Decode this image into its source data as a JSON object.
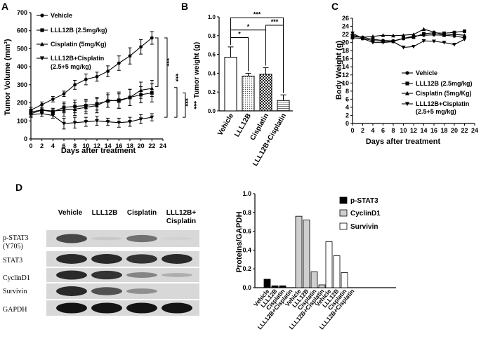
{
  "panels": {
    "a": "A",
    "b": "B",
    "c": "C",
    "d": "D"
  },
  "chart_data": [
    {
      "id": "A",
      "type": "line",
      "xlabel": "Days after treatment",
      "ylabel": "Tumor Volume (mm³)",
      "xlim": [
        0,
        24
      ],
      "ylim": [
        0,
        700
      ],
      "xticks": [
        "0",
        "2",
        "4",
        "6",
        "8",
        "10",
        "12",
        "14",
        "16",
        "18",
        "20",
        "22",
        "24"
      ],
      "yticks": [
        "0",
        "100",
        "200",
        "300",
        "400",
        "500",
        "600",
        "700"
      ],
      "legend": [
        "Vehicle",
        "LLL12B (2.5mg/kg)",
        "Cisplatin (5mg/Kg)",
        "LLL12B+Cisplatin",
        "(2.5+5 mg/kg)"
      ],
      "series": [
        {
          "name": "Vehicle",
          "marker": "circle",
          "x": [
            0,
            2,
            4,
            6,
            8,
            10,
            12,
            14,
            16,
            18,
            20,
            22
          ],
          "y": [
            160,
            190,
            220,
            250,
            300,
            330,
            345,
            375,
            420,
            460,
            510,
            560
          ],
          "err": [
            15,
            15,
            15,
            15,
            25,
            30,
            25,
            30,
            40,
            45,
            40,
            35
          ]
        },
        {
          "name": "LLL12B (2.5mg/kg)",
          "marker": "square",
          "x": [
            0,
            2,
            4,
            6,
            8,
            10,
            12,
            14,
            16,
            18,
            20,
            22
          ],
          "y": [
            150,
            160,
            150,
            175,
            180,
            185,
            195,
            210,
            215,
            230,
            245,
            255
          ],
          "err": [
            15,
            15,
            15,
            30,
            35,
            35,
            35,
            35,
            45,
            45,
            45,
            50
          ]
        },
        {
          "name": "Cisplatin (5mg/Kg)",
          "marker": "triangle",
          "x": [
            0,
            2,
            4,
            6,
            8,
            10,
            12,
            14,
            16,
            18,
            20,
            22
          ],
          "y": [
            140,
            160,
            155,
            160,
            165,
            175,
            185,
            215,
            210,
            230,
            270,
            280
          ],
          "err": [
            15,
            15,
            15,
            35,
            35,
            35,
            40,
            40,
            40,
            45,
            45,
            45
          ]
        },
        {
          "name": "LLL12B+Cisplatin (2.5+5 mg/kg)",
          "marker": "triangle-down",
          "x": [
            0,
            2,
            4,
            6,
            8,
            10,
            12,
            14,
            16,
            18,
            20,
            22
          ],
          "y": [
            135,
            140,
            130,
            85,
            90,
            95,
            100,
            95,
            90,
            95,
            110,
            120
          ],
          "err": [
            15,
            15,
            15,
            30,
            30,
            25,
            25,
            20,
            25,
            25,
            25,
            20
          ]
        }
      ],
      "significance": [
        "***",
        "***",
        "***",
        "***"
      ]
    },
    {
      "id": "B",
      "type": "bar",
      "ylabel": "Tumor weight (g)",
      "ylim": [
        0,
        1.0
      ],
      "yticks": [
        "0.0",
        "0.2",
        "0.4",
        "0.6",
        "0.8",
        "1.0"
      ],
      "categories": [
        "Vehicle",
        "LLL12B",
        "Cisplatin",
        "LLL12B+Cisplatin"
      ],
      "values": [
        0.57,
        0.37,
        0.39,
        0.11
      ],
      "err": [
        0.11,
        0.03,
        0.07,
        0.06
      ],
      "significance": [
        "*",
        "*",
        "***",
        "***"
      ]
    },
    {
      "id": "C",
      "type": "line",
      "xlabel": "Days after treatment",
      "ylabel": "Body Weight (g)",
      "xlim": [
        0,
        24
      ],
      "ylim": [
        0,
        26
      ],
      "xticks": [
        "0",
        "2",
        "4",
        "6",
        "8",
        "10",
        "12",
        "14",
        "16",
        "18",
        "20",
        "22",
        "24"
      ],
      "yticks": [
        "0",
        "2",
        "4",
        "6",
        "8",
        "10",
        "12",
        "14",
        "16",
        "18",
        "20",
        "22",
        "24",
        "26"
      ],
      "legend": [
        "Vehicle",
        "LLL12B (2.5mg/kg)",
        "Cisplatin (5mg/Kg)",
        "LLL12B+Cisplatin",
        "(2.5+5 mg/kg)"
      ],
      "series": [
        {
          "name": "Vehicle",
          "marker": "circle",
          "x": [
            0,
            2,
            4,
            6,
            8,
            10,
            12,
            14,
            16,
            18,
            20,
            22
          ],
          "y": [
            21.8,
            21.3,
            20.8,
            20.5,
            20.4,
            21.0,
            21.6,
            21.8,
            21.9,
            21.8,
            21.6,
            21.2
          ]
        },
        {
          "name": "LLL12B (2.5mg/kg)",
          "marker": "square",
          "x": [
            0,
            2,
            4,
            6,
            8,
            10,
            12,
            14,
            16,
            18,
            20,
            22
          ],
          "y": [
            21.2,
            21.0,
            20.5,
            20.3,
            20.3,
            21.0,
            21.3,
            22.2,
            22.4,
            22.3,
            22.5,
            22.8
          ]
        },
        {
          "name": "Cisplatin (5mg/Kg)",
          "marker": "triangle",
          "x": [
            0,
            2,
            4,
            6,
            8,
            10,
            12,
            14,
            16,
            18,
            20,
            22
          ],
          "y": [
            21.5,
            21.3,
            21.5,
            21.8,
            21.7,
            21.8,
            22.0,
            23.3,
            22.6,
            21.8,
            22.0,
            21.8
          ]
        },
        {
          "name": "LLL12B+Cisplatin (2.5+5 mg/kg)",
          "marker": "triangle-down",
          "x": [
            0,
            2,
            4,
            6,
            8,
            10,
            12,
            14,
            16,
            18,
            20,
            22
          ],
          "y": [
            22.3,
            21.0,
            20.0,
            20.0,
            20.2,
            18.8,
            19.0,
            20.4,
            20.3,
            20.0,
            19.5,
            20.8
          ]
        }
      ]
    },
    {
      "id": "D",
      "type": "bar",
      "ylabel": "Proteins/GAPDH",
      "ylim": [
        0,
        1.0
      ],
      "yticks": [
        "0.0",
        "0.2",
        "0.4",
        "0.6",
        "0.8",
        "1.0"
      ],
      "categories": [
        "Vehicle",
        "LLL12B",
        "Cisplatin",
        "LLL12B+Cisplatin"
      ],
      "legend": [
        "p-STAT3",
        "CyclinD1",
        "Survivin"
      ],
      "series": [
        {
          "name": "p-STAT3",
          "values": [
            0.09,
            0.02,
            0.02,
            0.0
          ]
        },
        {
          "name": "CyclinD1",
          "values": [
            0.76,
            0.72,
            0.17,
            0.03
          ]
        },
        {
          "name": "Survivin",
          "values": [
            0.49,
            0.34,
            0.16,
            0.0
          ]
        }
      ]
    }
  ],
  "western_blot": {
    "columns": [
      "Vehicle",
      "LLL12B",
      "Cisplatin",
      "LLL12B+",
      "Cisplatin"
    ],
    "rows": [
      {
        "label": "p-STAT3",
        "sublabel": "(Y705)",
        "levels": [
          0.75,
          0.12,
          0.55,
          0.08
        ]
      },
      {
        "label": "STAT3",
        "sublabel": "",
        "levels": [
          0.9,
          0.9,
          0.85,
          0.9
        ]
      },
      {
        "label": "CyclinD1",
        "sublabel": "",
        "levels": [
          0.9,
          0.85,
          0.45,
          0.25
        ]
      },
      {
        "label": "Survivin",
        "sublabel": "",
        "levels": [
          0.9,
          0.7,
          0.4,
          0.05
        ]
      },
      {
        "label": "GAPDH",
        "sublabel": "",
        "levels": [
          1.0,
          1.0,
          1.0,
          1.0
        ]
      }
    ]
  }
}
